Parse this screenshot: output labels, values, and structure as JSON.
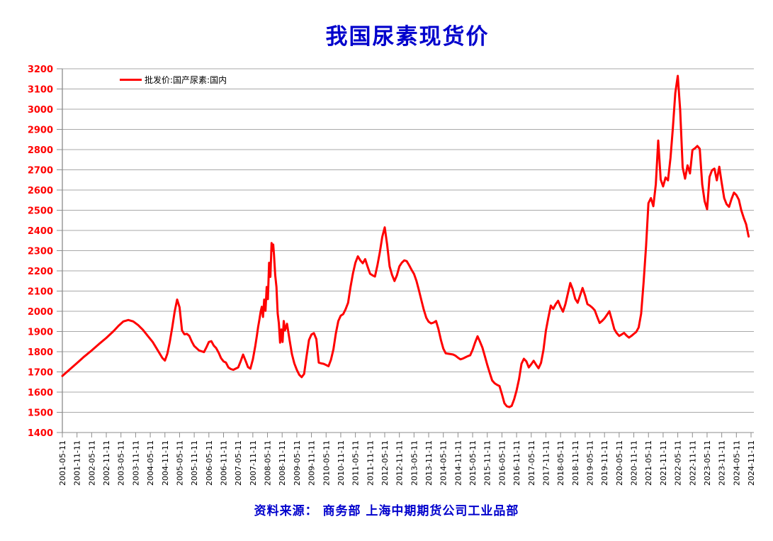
{
  "title": "我国尿素现货价",
  "source_note": "资料来源：  商务部    上海中期期货公司工业品部",
  "legend": {
    "label": "批发价:国产尿素:国内"
  },
  "colors": {
    "title": "#0000CC",
    "source": "#0000CC",
    "line": "#FF0000",
    "y_tick_label": "#FF0000",
    "x_tick_label": "#000000",
    "grid": "#A9A9A9",
    "axis": "#8C8C8C"
  },
  "chart_data": {
    "type": "line",
    "title": "我国尿素现货价",
    "series_name": "批发价:国产尿素:国内",
    "ylabel": "",
    "xlabel": "",
    "ylim": [
      1400,
      3200
    ],
    "y_ticks": [
      1400,
      1500,
      1600,
      1700,
      1800,
      1900,
      2000,
      2100,
      2200,
      2300,
      2400,
      2500,
      2600,
      2700,
      2800,
      2900,
      3000,
      3100,
      3200
    ],
    "grid": "horizontal",
    "legend_position": "top-left-inside",
    "x_tick_labels": [
      "2001-05-11",
      "2001-11-11",
      "2002-05-11",
      "2002-11-11",
      "2003-05-11",
      "2003-11-11",
      "2004-05-11",
      "2004-11-11",
      "2005-05-11",
      "2005-11-11",
      "2006-05-11",
      "2006-11-11",
      "2007-05-11",
      "2007-11-11",
      "2008-05-11",
      "2008-11-11",
      "2009-05-11",
      "2009-11-11",
      "2010-05-11",
      "2010-11-11",
      "2011-05-11",
      "2011-11-11",
      "2012-05-11",
      "2012-11-11",
      "2013-05-11",
      "2013-11-11",
      "2014-05-11",
      "2014-11-11",
      "2015-05-11",
      "2015-11-11",
      "2016-05-11",
      "2016-11-11",
      "2017-05-11",
      "2017-11-11",
      "2018-05-11",
      "2018-11-11",
      "2019-05-11",
      "2019-11-11",
      "2020-05-11",
      "2020-11-11",
      "2021-05-11",
      "2021-11-11",
      "2022-05-11",
      "2022-11-11",
      "2023-05-11",
      "2023-11-11",
      "2024-05-11",
      "2024-11-11"
    ],
    "points": [
      [
        "2001-05",
        1680
      ],
      [
        "2001-08",
        1712
      ],
      [
        "2001-11",
        1744
      ],
      [
        "2002-02",
        1776
      ],
      [
        "2002-05",
        1806
      ],
      [
        "2002-08",
        1838
      ],
      [
        "2002-11",
        1868
      ],
      [
        "2003-02",
        1902
      ],
      [
        "2003-04",
        1928
      ],
      [
        "2003-06",
        1950
      ],
      [
        "2003-08",
        1957
      ],
      [
        "2003-10",
        1950
      ],
      [
        "2003-12",
        1932
      ],
      [
        "2004-02",
        1908
      ],
      [
        "2004-04",
        1878
      ],
      [
        "2004-06",
        1848
      ],
      [
        "2004-08",
        1808
      ],
      [
        "2004-10",
        1768
      ],
      [
        "2004-11",
        1756
      ],
      [
        "2004-12",
        1790
      ],
      [
        "2005-01",
        1850
      ],
      [
        "2005-02",
        1920
      ],
      [
        "2005-03",
        2000
      ],
      [
        "2005-04",
        2058
      ],
      [
        "2005-05",
        2020
      ],
      [
        "2005-06",
        1905
      ],
      [
        "2005-07",
        1886
      ],
      [
        "2005-08",
        1888
      ],
      [
        "2005-09",
        1878
      ],
      [
        "2005-10",
        1850
      ],
      [
        "2005-11",
        1828
      ],
      [
        "2006-01",
        1806
      ],
      [
        "2006-03",
        1798
      ],
      [
        "2006-04",
        1822
      ],
      [
        "2006-05",
        1848
      ],
      [
        "2006-06",
        1852
      ],
      [
        "2006-07",
        1830
      ],
      [
        "2006-08",
        1818
      ],
      [
        "2006-09",
        1795
      ],
      [
        "2006-10",
        1768
      ],
      [
        "2006-11",
        1752
      ],
      [
        "2006-12",
        1746
      ],
      [
        "2007-01",
        1722
      ],
      [
        "2007-02",
        1714
      ],
      [
        "2007-03",
        1710
      ],
      [
        "2007-04",
        1716
      ],
      [
        "2007-05",
        1722
      ],
      [
        "2007-06",
        1752
      ],
      [
        "2007-07",
        1786
      ],
      [
        "2007-08",
        1756
      ],
      [
        "2007-09",
        1724
      ],
      [
        "2007-10",
        1716
      ],
      [
        "2007-11",
        1762
      ],
      [
        "2007-12",
        1828
      ],
      [
        "2008-01-01",
        1880
      ],
      [
        "2008-01-16",
        1922
      ],
      [
        "2008-02-01",
        1956
      ],
      [
        "2008-02-16",
        1996
      ],
      [
        "2008-03-01",
        2022
      ],
      [
        "2008-03-16",
        1972
      ],
      [
        "2008-04-01",
        2058
      ],
      [
        "2008-04-16",
        2002
      ],
      [
        "2008-05-01",
        2120
      ],
      [
        "2008-05-16",
        2060
      ],
      [
        "2008-06-01",
        2240
      ],
      [
        "2008-06-16",
        2170
      ],
      [
        "2008-07-01",
        2338
      ],
      [
        "2008-07-11",
        2300
      ],
      [
        "2008-07-21",
        2330
      ],
      [
        "2008-08-01",
        2280
      ],
      [
        "2008-08-16",
        2180
      ],
      [
        "2008-09-01",
        2120
      ],
      [
        "2008-09-16",
        1990
      ],
      [
        "2008-10-01",
        1940
      ],
      [
        "2008-10-16",
        1845
      ],
      [
        "2008-11-01",
        1910
      ],
      [
        "2008-11-16",
        1848
      ],
      [
        "2008-12-01",
        1952
      ],
      [
        "2008-12-16",
        1905
      ],
      [
        "2009-01",
        1938
      ],
      [
        "2009-02",
        1860
      ],
      [
        "2009-03",
        1788
      ],
      [
        "2009-04",
        1742
      ],
      [
        "2009-05",
        1710
      ],
      [
        "2009-06",
        1686
      ],
      [
        "2009-07",
        1674
      ],
      [
        "2009-08",
        1690
      ],
      [
        "2009-09",
        1778
      ],
      [
        "2009-10",
        1858
      ],
      [
        "2009-11",
        1885
      ],
      [
        "2009-12",
        1892
      ],
      [
        "2010-01",
        1862
      ],
      [
        "2010-02",
        1746
      ],
      [
        "2010-03",
        1742
      ],
      [
        "2010-04",
        1740
      ],
      [
        "2010-05",
        1734
      ],
      [
        "2010-06",
        1728
      ],
      [
        "2010-07",
        1760
      ],
      [
        "2010-08",
        1812
      ],
      [
        "2010-09",
        1890
      ],
      [
        "2010-10",
        1952
      ],
      [
        "2010-11",
        1978
      ],
      [
        "2010-12",
        1986
      ],
      [
        "2011-01",
        2010
      ],
      [
        "2011-02",
        2042
      ],
      [
        "2011-03",
        2120
      ],
      [
        "2011-04",
        2188
      ],
      [
        "2011-05",
        2240
      ],
      [
        "2011-06",
        2272
      ],
      [
        "2011-07",
        2252
      ],
      [
        "2011-08",
        2238
      ],
      [
        "2011-09",
        2258
      ],
      [
        "2011-10",
        2220
      ],
      [
        "2011-11",
        2186
      ],
      [
        "2011-12",
        2178
      ],
      [
        "2012-01",
        2172
      ],
      [
        "2012-02",
        2226
      ],
      [
        "2012-03",
        2292
      ],
      [
        "2012-04",
        2368
      ],
      [
        "2012-05",
        2415
      ],
      [
        "2012-06",
        2330
      ],
      [
        "2012-07",
        2222
      ],
      [
        "2012-08",
        2180
      ],
      [
        "2012-09",
        2150
      ],
      [
        "2012-10",
        2178
      ],
      [
        "2012-11",
        2222
      ],
      [
        "2012-12",
        2240
      ],
      [
        "2013-01",
        2252
      ],
      [
        "2013-02",
        2248
      ],
      [
        "2013-03",
        2228
      ],
      [
        "2013-04",
        2205
      ],
      [
        "2013-05",
        2185
      ],
      [
        "2013-06",
        2150
      ],
      [
        "2013-07",
        2105
      ],
      [
        "2013-08",
        2055
      ],
      [
        "2013-09",
        2008
      ],
      [
        "2013-10",
        1968
      ],
      [
        "2013-11",
        1948
      ],
      [
        "2013-12",
        1940
      ],
      [
        "2014-01",
        1944
      ],
      [
        "2014-02",
        1952
      ],
      [
        "2014-03",
        1912
      ],
      [
        "2014-04",
        1858
      ],
      [
        "2014-05",
        1815
      ],
      [
        "2014-06",
        1792
      ],
      [
        "2014-07",
        1790
      ],
      [
        "2014-08",
        1788
      ],
      [
        "2014-09",
        1786
      ],
      [
        "2014-10",
        1780
      ],
      [
        "2014-11",
        1770
      ],
      [
        "2014-12",
        1762
      ],
      [
        "2015-01",
        1766
      ],
      [
        "2015-02",
        1772
      ],
      [
        "2015-03",
        1778
      ],
      [
        "2015-04",
        1782
      ],
      [
        "2015-05",
        1810
      ],
      [
        "2015-06",
        1845
      ],
      [
        "2015-07",
        1876
      ],
      [
        "2015-08",
        1850
      ],
      [
        "2015-09",
        1820
      ],
      [
        "2015-10",
        1778
      ],
      [
        "2015-11",
        1735
      ],
      [
        "2015-12",
        1695
      ],
      [
        "2016-01",
        1658
      ],
      [
        "2016-02",
        1644
      ],
      [
        "2016-03",
        1636
      ],
      [
        "2016-04",
        1630
      ],
      [
        "2016-05",
        1590
      ],
      [
        "2016-06",
        1545
      ],
      [
        "2016-07",
        1530
      ],
      [
        "2016-08",
        1526
      ],
      [
        "2016-09",
        1532
      ],
      [
        "2016-10",
        1565
      ],
      [
        "2016-11",
        1608
      ],
      [
        "2016-12",
        1665
      ],
      [
        "2017-01",
        1740
      ],
      [
        "2017-02",
        1765
      ],
      [
        "2017-03",
        1752
      ],
      [
        "2017-04",
        1722
      ],
      [
        "2017-05",
        1738
      ],
      [
        "2017-06",
        1755
      ],
      [
        "2017-07",
        1735
      ],
      [
        "2017-08",
        1718
      ],
      [
        "2017-09",
        1745
      ],
      [
        "2017-10",
        1808
      ],
      [
        "2017-11",
        1905
      ],
      [
        "2017-12",
        1968
      ],
      [
        "2018-01",
        2028
      ],
      [
        "2018-02",
        2012
      ],
      [
        "2018-03",
        2035
      ],
      [
        "2018-04",
        2052
      ],
      [
        "2018-05",
        2022
      ],
      [
        "2018-06",
        1998
      ],
      [
        "2018-07",
        2035
      ],
      [
        "2018-08",
        2088
      ],
      [
        "2018-09",
        2140
      ],
      [
        "2018-10",
        2108
      ],
      [
        "2018-11",
        2062
      ],
      [
        "2018-12",
        2042
      ],
      [
        "2019-01",
        2078
      ],
      [
        "2019-02",
        2115
      ],
      [
        "2019-03",
        2080
      ],
      [
        "2019-04",
        2035
      ],
      [
        "2019-05",
        2028
      ],
      [
        "2019-06",
        2018
      ],
      [
        "2019-07",
        2005
      ],
      [
        "2019-08",
        1972
      ],
      [
        "2019-09",
        1942
      ],
      [
        "2019-10",
        1952
      ],
      [
        "2019-11",
        1965
      ],
      [
        "2019-12",
        1982
      ],
      [
        "2020-01",
        2000
      ],
      [
        "2020-02",
        1958
      ],
      [
        "2020-03",
        1912
      ],
      [
        "2020-04",
        1892
      ],
      [
        "2020-05",
        1878
      ],
      [
        "2020-06",
        1885
      ],
      [
        "2020-07",
        1893
      ],
      [
        "2020-08",
        1880
      ],
      [
        "2020-09",
        1870
      ],
      [
        "2020-10",
        1878
      ],
      [
        "2020-11",
        1888
      ],
      [
        "2020-12",
        1898
      ],
      [
        "2021-01",
        1920
      ],
      [
        "2021-02",
        1988
      ],
      [
        "2021-03",
        2140
      ],
      [
        "2021-04",
        2320
      ],
      [
        "2021-05",
        2535
      ],
      [
        "2021-06",
        2560
      ],
      [
        "2021-07",
        2520
      ],
      [
        "2021-08",
        2628
      ],
      [
        "2021-09",
        2845
      ],
      [
        "2021-10",
        2652
      ],
      [
        "2021-11",
        2618
      ],
      [
        "2021-12",
        2662
      ],
      [
        "2022-01",
        2648
      ],
      [
        "2022-02",
        2758
      ],
      [
        "2022-03",
        2908
      ],
      [
        "2022-04",
        3080
      ],
      [
        "2022-05",
        3165
      ],
      [
        "2022-06",
        2995
      ],
      [
        "2022-07",
        2712
      ],
      [
        "2022-08",
        2656
      ],
      [
        "2022-09",
        2722
      ],
      [
        "2022-10",
        2682
      ],
      [
        "2022-11",
        2798
      ],
      [
        "2022-12",
        2806
      ],
      [
        "2023-01",
        2818
      ],
      [
        "2023-02",
        2804
      ],
      [
        "2023-03",
        2628
      ],
      [
        "2023-04",
        2545
      ],
      [
        "2023-05",
        2505
      ],
      [
        "2023-06",
        2665
      ],
      [
        "2023-07",
        2698
      ],
      [
        "2023-08",
        2706
      ],
      [
        "2023-09",
        2648
      ],
      [
        "2023-10",
        2715
      ],
      [
        "2023-11",
        2635
      ],
      [
        "2023-12",
        2560
      ],
      [
        "2024-01",
        2530
      ],
      [
        "2024-02",
        2517
      ],
      [
        "2024-03",
        2555
      ],
      [
        "2024-04",
        2587
      ],
      [
        "2024-05",
        2575
      ],
      [
        "2024-06",
        2552
      ],
      [
        "2024-07",
        2500
      ],
      [
        "2024-08",
        2462
      ],
      [
        "2024-09",
        2430
      ],
      [
        "2024-10",
        2370
      ]
    ]
  }
}
